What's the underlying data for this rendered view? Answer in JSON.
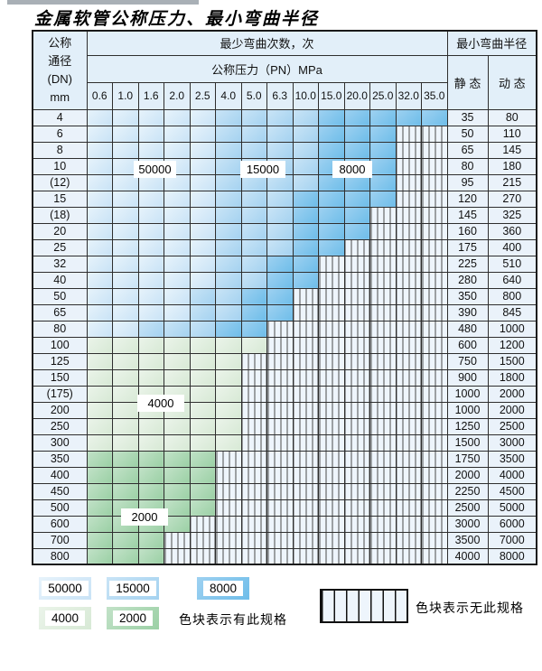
{
  "title": "金属软管公称压力、最小弯曲半径",
  "table": {
    "header": {
      "dn_lines": [
        "公称",
        "通径",
        "(DN)",
        "mm"
      ],
      "bend_times": "最少弯曲次数，次",
      "bend_radius": "最小弯曲半径",
      "pressure": "公称压力（PN）MPa",
      "pressures": [
        "0.6",
        "1.0",
        "1.6",
        "2.0",
        "2.5",
        "4.0",
        "5.0",
        "6.3",
        "10.0",
        "15.0",
        "20.0",
        "25.0",
        "32.0",
        "35.0"
      ],
      "static": "静 态",
      "dynamic": "动 态"
    },
    "cycle_codes": {
      "A": "50000",
      "B": "15000",
      "C": "8000",
      "D": "4000",
      "E": "2000",
      "X": "no-spec"
    },
    "rows": [
      {
        "dn": "4",
        "cells": "AAAAABBBBCCCCC",
        "static": "35",
        "dynamic": "80"
      },
      {
        "dn": "6",
        "cells": "AAAAABBBBCCCXX",
        "static": "50",
        "dynamic": "110"
      },
      {
        "dn": "8",
        "cells": "AAAAABBBBCCCXX",
        "static": "65",
        "dynamic": "145"
      },
      {
        "dn": "10",
        "cells": "AAAAABBBBCCCXX",
        "static": "80",
        "dynamic": "180"
      },
      {
        "dn": "(12)",
        "cells": "AAAAABBBBCCCXX",
        "static": "95",
        "dynamic": "215"
      },
      {
        "dn": "15",
        "cells": "AAAAABBBCCCCXX",
        "static": "120",
        "dynamic": "270"
      },
      {
        "dn": "(18)",
        "cells": "AAAAABBBCCCXXX",
        "static": "145",
        "dynamic": "325"
      },
      {
        "dn": "20",
        "cells": "AAAAABBBCCCXXX",
        "static": "160",
        "dynamic": "360"
      },
      {
        "dn": "25",
        "cells": "AAAAABBBCCXXXX",
        "static": "175",
        "dynamic": "400"
      },
      {
        "dn": "32",
        "cells": "AAAAABBCCXXXXX",
        "static": "225",
        "dynamic": "510"
      },
      {
        "dn": "40",
        "cells": "AAAAABBCCXXXXX",
        "static": "280",
        "dynamic": "640"
      },
      {
        "dn": "50",
        "cells": "AAAABBCCXXXXXX",
        "static": "350",
        "dynamic": "800"
      },
      {
        "dn": "65",
        "cells": "AAAABBCCXXXXXX",
        "static": "390",
        "dynamic": "845"
      },
      {
        "dn": "80",
        "cells": "AABBBCCXXXXXXX",
        "static": "480",
        "dynamic": "1000"
      },
      {
        "dn": "100",
        "cells": "DDDDDDDXXXXXXX",
        "static": "600",
        "dynamic": "1200"
      },
      {
        "dn": "125",
        "cells": "DDDDDDXXXXXXXX",
        "static": "750",
        "dynamic": "1500"
      },
      {
        "dn": "150",
        "cells": "DDDDDDXXXXXXXX",
        "static": "900",
        "dynamic": "1800"
      },
      {
        "dn": "(175)",
        "cells": "DDDDDDXXXXXXXX",
        "static": "1000",
        "dynamic": "2000"
      },
      {
        "dn": "200",
        "cells": "DDDDDDXXXXXXXX",
        "static": "1000",
        "dynamic": "2000"
      },
      {
        "dn": "250",
        "cells": "DDDDDDXXXXXXXX",
        "static": "1250",
        "dynamic": "2500"
      },
      {
        "dn": "300",
        "cells": "DDDDDDXXXXXXXX",
        "static": "1500",
        "dynamic": "3000"
      },
      {
        "dn": "350",
        "cells": "EEEEEXXXXXXXXX",
        "static": "1750",
        "dynamic": "3500"
      },
      {
        "dn": "400",
        "cells": "EEEEEXXXXXXXXX",
        "static": "2000",
        "dynamic": "4000"
      },
      {
        "dn": "450",
        "cells": "EEEEEXXXXXXXXX",
        "static": "2250",
        "dynamic": "4500"
      },
      {
        "dn": "500",
        "cells": "EEEEEXXXXXXXXX",
        "static": "2500",
        "dynamic": "5000"
      },
      {
        "dn": "600",
        "cells": "EEEEXXXXXXXXXX",
        "static": "3000",
        "dynamic": "6000"
      },
      {
        "dn": "700",
        "cells": "EEEXXXXXXXXXXX",
        "static": "3500",
        "dynamic": "7000"
      },
      {
        "dn": "800",
        "cells": "EEEXXXXXXXXXXX",
        "static": "4000",
        "dynamic": "8000"
      }
    ]
  },
  "overlays": [
    {
      "text": "50000"
    },
    {
      "text": "15000"
    },
    {
      "text": "8000"
    },
    {
      "text": "4000"
    },
    {
      "text": "2000"
    }
  ],
  "legend": {
    "blocks": [
      {
        "code": "A",
        "label": "50000"
      },
      {
        "code": "B",
        "label": "15000"
      },
      {
        "code": "C",
        "label": "8000"
      },
      {
        "code": "D",
        "label": "4000"
      },
      {
        "code": "E",
        "label": "2000"
      }
    ],
    "has_spec_text": "色块表示有此规格",
    "no_spec_text": "色块表示无此规格"
  },
  "colors": {
    "A": {
      "base": "#c9e3f6",
      "light": "#e7f3fb"
    },
    "B": {
      "base": "#a4d2f0",
      "light": "#c9e4f6"
    },
    "C": {
      "base": "#6ebde9",
      "light": "#9ed1f1"
    },
    "D": {
      "base": "#d7e9d5",
      "light": "#ebf4ea"
    },
    "E": {
      "base": "#9bd0a5",
      "light": "#c2e2c8"
    },
    "hatch_bg": "#eef5fc",
    "hatch_line": "#4a4a4a",
    "header_bg": "#e2eff9",
    "side_bg": "#eaf2fa",
    "grid": "#2e2e2e",
    "top_bar": "#a9b0b6"
  }
}
